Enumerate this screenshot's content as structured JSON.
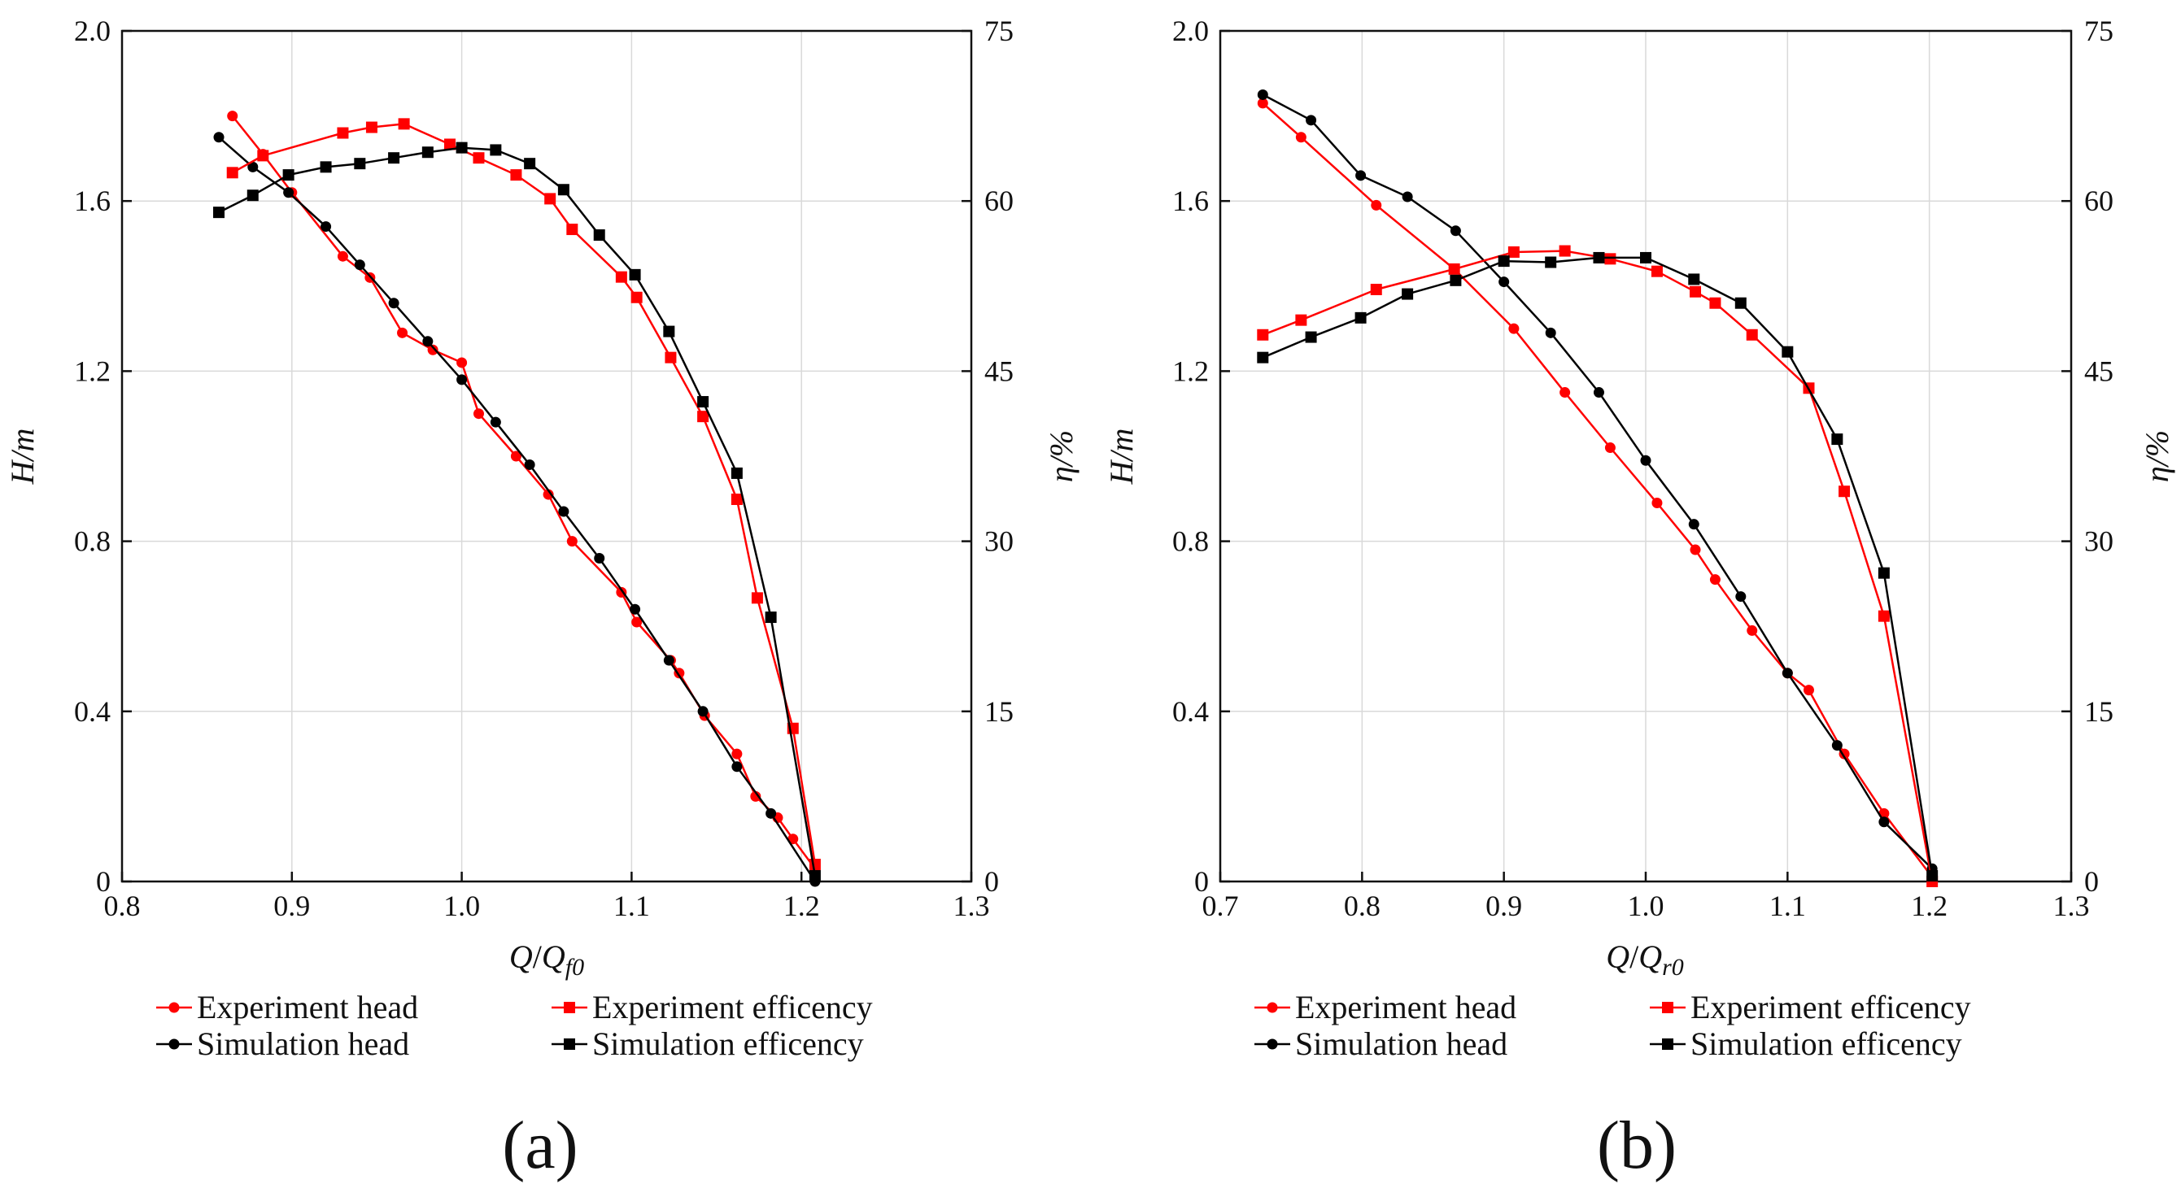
{
  "colors": {
    "experiment": "#ff0000",
    "simulation": "#000000"
  },
  "chart_data": [
    {
      "type": "line",
      "panel_label": "(a)",
      "xlabel_main": "Q",
      "xlabel_sub": "f0",
      "ylabel_left": "H/m",
      "ylabel_right": "η/%",
      "xlim": [
        0.8,
        1.3
      ],
      "ylim_left": [
        0,
        2.0
      ],
      "ylim_right": [
        0,
        75
      ],
      "x_ticks": [
        "0.8",
        "0.9",
        "1.0",
        "1.1",
        "1.2",
        "1.3"
      ],
      "y_left_ticks": [
        "0",
        "0.4",
        "0.8",
        "1.2",
        "1.6",
        "2.0"
      ],
      "y_right_ticks": [
        "0",
        "15",
        "30",
        "45",
        "60",
        "75"
      ],
      "series": [
        {
          "name": "Experiment head",
          "axis": "left",
          "marker": "circle",
          "color": "#ff0000",
          "x": [
            0.865,
            0.883,
            0.9,
            0.93,
            0.946,
            0.965,
            0.983,
            1.0,
            1.01,
            1.032,
            1.051,
            1.065,
            1.094,
            1.103,
            1.123,
            1.128,
            1.143,
            1.162,
            1.173,
            1.186,
            1.195,
            1.208
          ],
          "y": [
            1.8,
            1.71,
            1.62,
            1.47,
            1.42,
            1.29,
            1.25,
            1.22,
            1.1,
            1.0,
            0.91,
            0.8,
            0.68,
            0.61,
            0.52,
            0.49,
            0.39,
            0.3,
            0.2,
            0.15,
            0.1,
            0.03
          ]
        },
        {
          "name": "Simulation head",
          "axis": "left",
          "marker": "circle",
          "color": "#000000",
          "x": [
            0.857,
            0.877,
            0.898,
            0.92,
            0.94,
            0.96,
            0.98,
            1.0,
            1.02,
            1.04,
            1.06,
            1.081,
            1.102,
            1.122,
            1.142,
            1.162,
            1.182,
            1.208
          ],
          "y": [
            1.75,
            1.68,
            1.62,
            1.54,
            1.45,
            1.36,
            1.27,
            1.18,
            1.08,
            0.98,
            0.87,
            0.76,
            0.64,
            0.52,
            0.4,
            0.27,
            0.16,
            0.0
          ]
        },
        {
          "name": "Experiment efficency",
          "axis": "right",
          "marker": "square",
          "color": "#ff0000",
          "x": [
            0.865,
            0.883,
            0.93,
            0.947,
            0.966,
            0.993,
            1.01,
            1.032,
            1.052,
            1.065,
            1.094,
            1.103,
            1.123,
            1.142,
            1.162,
            1.174,
            1.195,
            1.208
          ],
          "y": [
            62.5,
            64.0,
            66.0,
            66.5,
            66.8,
            65.0,
            63.8,
            62.3,
            60.2,
            57.5,
            53.3,
            51.5,
            46.2,
            41.0,
            33.7,
            25.0,
            13.5,
            1.5
          ]
        },
        {
          "name": "Simulation efficency",
          "axis": "right",
          "marker": "square",
          "color": "#000000",
          "x": [
            0.857,
            0.877,
            0.898,
            0.92,
            0.94,
            0.96,
            0.98,
            1.0,
            1.02,
            1.04,
            1.06,
            1.081,
            1.102,
            1.122,
            1.142,
            1.162,
            1.182,
            1.208
          ],
          "y": [
            59.0,
            60.5,
            62.3,
            63.0,
            63.3,
            63.8,
            64.3,
            64.7,
            64.5,
            63.3,
            61.0,
            57.0,
            53.5,
            48.5,
            42.3,
            36.0,
            23.3,
            0.5
          ]
        }
      ]
    },
    {
      "type": "line",
      "panel_label": "(b)",
      "xlabel_main": "Q",
      "xlabel_sub": "r0",
      "ylabel_left": "H/m",
      "ylabel_right": "η/%",
      "xlim": [
        0.7,
        1.3
      ],
      "ylim_left": [
        0,
        2.0
      ],
      "ylim_right": [
        0,
        75
      ],
      "x_ticks": [
        "0.7",
        "0.8",
        "0.9",
        "1.0",
        "1.1",
        "1.2",
        "1.3"
      ],
      "y_left_ticks": [
        "0",
        "0.4",
        "0.8",
        "1.2",
        "1.6",
        "2.0"
      ],
      "y_right_ticks": [
        "0",
        "15",
        "30",
        "45",
        "60",
        "75"
      ],
      "series": [
        {
          "name": "Experiment head",
          "axis": "left",
          "marker": "circle",
          "color": "#ff0000",
          "x": [
            0.73,
            0.757,
            0.81,
            0.865,
            0.907,
            0.943,
            0.975,
            1.008,
            1.035,
            1.049,
            1.075,
            1.1,
            1.115,
            1.14,
            1.168,
            1.202
          ],
          "y": [
            1.83,
            1.75,
            1.59,
            1.44,
            1.3,
            1.15,
            1.02,
            0.89,
            0.78,
            0.71,
            0.59,
            0.49,
            0.45,
            0.3,
            0.16,
            0.01
          ]
        },
        {
          "name": "Simulation head",
          "axis": "left",
          "marker": "circle",
          "color": "#000000",
          "x": [
            0.73,
            0.764,
            0.799,
            0.832,
            0.866,
            0.9,
            0.933,
            0.967,
            1.0,
            1.034,
            1.067,
            1.1,
            1.135,
            1.168,
            1.202
          ],
          "y": [
            1.85,
            1.79,
            1.66,
            1.61,
            1.53,
            1.41,
            1.29,
            1.15,
            0.99,
            0.84,
            0.67,
            0.49,
            0.32,
            0.14,
            0.03
          ]
        },
        {
          "name": "Experiment efficency",
          "axis": "right",
          "marker": "square",
          "color": "#ff0000",
          "x": [
            0.73,
            0.757,
            0.81,
            0.865,
            0.907,
            0.943,
            0.975,
            1.008,
            1.035,
            1.049,
            1.075,
            1.115,
            1.14,
            1.168,
            1.202
          ],
          "y": [
            48.2,
            49.5,
            52.2,
            54.0,
            55.5,
            55.6,
            54.9,
            53.8,
            52.0,
            51.0,
            48.2,
            43.5,
            34.4,
            23.4,
            0.0
          ]
        },
        {
          "name": "Simulation efficency",
          "axis": "right",
          "marker": "square",
          "color": "#000000",
          "x": [
            0.73,
            0.764,
            0.799,
            0.832,
            0.866,
            0.9,
            0.933,
            0.967,
            1.0,
            1.034,
            1.067,
            1.1,
            1.135,
            1.168,
            1.202
          ],
          "y": [
            46.2,
            48.0,
            49.7,
            51.8,
            53.0,
            54.7,
            54.6,
            55.0,
            55.0,
            53.1,
            51.0,
            46.7,
            39.0,
            27.2,
            0.5
          ]
        }
      ]
    }
  ]
}
